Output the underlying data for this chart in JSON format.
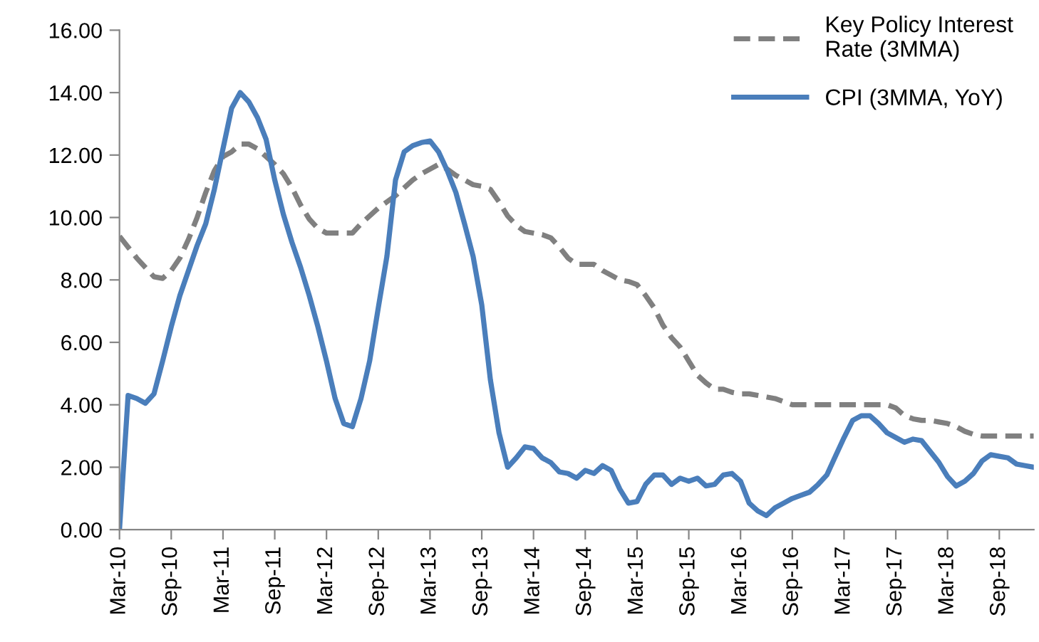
{
  "chart_data": {
    "type": "line",
    "categories": [
      "Mar-10",
      null,
      null,
      null,
      null,
      null,
      "Sep-10",
      null,
      null,
      null,
      null,
      null,
      "Mar-11",
      null,
      null,
      null,
      null,
      null,
      "Sep-11",
      null,
      null,
      null,
      null,
      null,
      "Mar-12",
      null,
      null,
      null,
      null,
      null,
      "Sep-12",
      null,
      null,
      null,
      null,
      null,
      "Mar-13",
      null,
      null,
      null,
      null,
      null,
      "Sep-13",
      null,
      null,
      null,
      null,
      null,
      "Mar-14",
      null,
      null,
      null,
      null,
      null,
      "Sep-14",
      null,
      null,
      null,
      null,
      null,
      "Mar-15",
      null,
      null,
      null,
      null,
      null,
      "Sep-15",
      null,
      null,
      null,
      null,
      null,
      "Mar-16",
      null,
      null,
      null,
      null,
      null,
      "Sep-16",
      null,
      null,
      null,
      null,
      null,
      "Mar-17",
      null,
      null,
      null,
      null,
      null,
      "Sep-17",
      null,
      null,
      null,
      null,
      null,
      "Mar-18",
      null,
      null,
      null,
      null,
      null,
      "Sep-18",
      null,
      null,
      null,
      null
    ],
    "series": [
      {
        "name": "Key Policy Interest\nRate (3MMA)",
        "color": "#808080",
        "line_style": "dashed",
        "values": [
          9.4,
          9.05,
          8.7,
          8.4,
          8.1,
          8.05,
          8.3,
          8.7,
          9.3,
          10.0,
          10.8,
          11.5,
          11.95,
          12.1,
          12.35,
          12.35,
          12.2,
          11.95,
          11.7,
          11.4,
          10.95,
          10.4,
          9.95,
          9.65,
          9.5,
          9.5,
          9.5,
          9.5,
          9.8,
          10.05,
          10.3,
          10.5,
          10.7,
          10.95,
          11.2,
          11.4,
          11.55,
          11.7,
          11.55,
          11.35,
          11.2,
          11.05,
          11.0,
          10.9,
          10.5,
          10.05,
          9.75,
          9.55,
          9.5,
          9.45,
          9.35,
          9.05,
          8.7,
          8.5,
          8.5,
          8.5,
          8.3,
          8.15,
          8.0,
          7.95,
          7.85,
          7.5,
          7.1,
          6.55,
          6.15,
          5.85,
          5.4,
          4.95,
          4.7,
          4.5,
          4.5,
          4.4,
          4.35,
          4.35,
          4.3,
          4.25,
          4.2,
          4.1,
          4.0,
          4.0,
          4.0,
          4.0,
          4.0,
          4.0,
          4.0,
          4.0,
          4.0,
          4.0,
          4.0,
          4.0,
          3.9,
          3.65,
          3.55,
          3.5,
          3.5,
          3.45,
          3.4,
          3.3,
          3.15,
          3.05,
          3.0,
          3.0,
          3.0,
          3.0,
          3.0,
          3.0,
          3.0
        ]
      },
      {
        "name": "CPI (3MMA, YoY)",
        "color": "#4a7ebb",
        "line_style": "solid",
        "values": [
          0.0,
          4.3,
          4.2,
          4.05,
          4.35,
          5.4,
          6.5,
          7.5,
          8.3,
          9.1,
          9.8,
          10.9,
          12.2,
          13.5,
          14.0,
          13.7,
          13.2,
          12.5,
          11.2,
          10.1,
          9.2,
          8.4,
          7.5,
          6.5,
          5.4,
          4.2,
          3.4,
          3.3,
          4.2,
          5.4,
          7.1,
          8.75,
          11.2,
          12.1,
          12.3,
          12.4,
          12.45,
          12.1,
          11.5,
          10.8,
          9.8,
          8.75,
          7.2,
          4.8,
          3.1,
          2.0,
          2.3,
          2.65,
          2.6,
          2.3,
          2.15,
          1.85,
          1.8,
          1.65,
          1.9,
          1.8,
          2.05,
          1.9,
          1.3,
          0.85,
          0.9,
          1.45,
          1.75,
          1.75,
          1.45,
          1.65,
          1.55,
          1.65,
          1.4,
          1.45,
          1.75,
          1.8,
          1.55,
          0.85,
          0.6,
          0.45,
          0.7,
          0.85,
          1.0,
          1.1,
          1.2,
          1.45,
          1.75,
          2.35,
          2.95,
          3.5,
          3.65,
          3.65,
          3.4,
          3.1,
          2.95,
          2.8,
          2.9,
          2.85,
          2.5,
          2.15,
          1.7,
          1.4,
          1.55,
          1.8,
          2.2,
          2.4,
          2.35,
          2.3,
          2.1,
          2.05,
          2.0
        ]
      }
    ],
    "ylim": [
      0,
      16
    ],
    "yticks": [
      {
        "value": 0,
        "label": "0.00"
      },
      {
        "value": 2,
        "label": "2.00"
      },
      {
        "value": 4,
        "label": "4.00"
      },
      {
        "value": 6,
        "label": "6.00"
      },
      {
        "value": 8,
        "label": "8.00"
      },
      {
        "value": 10,
        "label": "10.00"
      },
      {
        "value": 12,
        "label": "12.00"
      },
      {
        "value": 14,
        "label": "14.00"
      },
      {
        "value": 16,
        "label": "16.00"
      }
    ],
    "grid": false,
    "legend": "top right",
    "marker": "none"
  }
}
